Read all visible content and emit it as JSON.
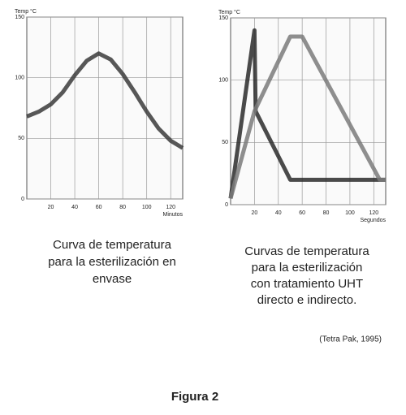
{
  "chart_data": [
    {
      "type": "line",
      "ylabel": "Temp °C",
      "xlabel": "Minutos",
      "x": [
        0,
        10,
        20,
        30,
        40,
        50,
        60,
        70,
        80,
        90,
        100,
        110,
        120,
        130
      ],
      "values": [
        68,
        72,
        78,
        88,
        102,
        114,
        120,
        115,
        103,
        88,
        72,
        58,
        48,
        42
      ],
      "color": "#3a3a3a",
      "xlim": [
        0,
        130
      ],
      "xticks": [
        20,
        40,
        60,
        80,
        100,
        120
      ],
      "ylim": [
        0,
        150
      ],
      "yticks": [
        0,
        50,
        100,
        150
      ],
      "grid": true
    },
    {
      "type": "line",
      "ylabel": "Temp °C",
      "xlabel": "Segundos",
      "series": [
        {
          "color": "#2a2a2a",
          "x": [
            0,
            20,
            21,
            50,
            130
          ],
          "values": [
            5,
            140,
            75,
            20,
            20
          ]
        },
        {
          "color": "#7a7a7a",
          "x": [
            0,
            20,
            50,
            60,
            125,
            130
          ],
          "values": [
            5,
            75,
            135,
            135,
            20,
            20
          ]
        }
      ],
      "xlim": [
        0,
        130
      ],
      "xticks": [
        20,
        40,
        60,
        80,
        100,
        120
      ],
      "ylim": [
        0,
        150
      ],
      "yticks": [
        0,
        50,
        100,
        150
      ],
      "grid": true
    }
  ],
  "captions": [
    [
      "Curva de temperatura",
      "para la esterilización en",
      "envase"
    ],
    [
      "Curvas de temperatura",
      "para la esterilización",
      "con tratamiento UHT",
      "directo e indirecto."
    ]
  ],
  "source": "(Tetra Pak, 1995)",
  "figure_label": "Figura 2"
}
